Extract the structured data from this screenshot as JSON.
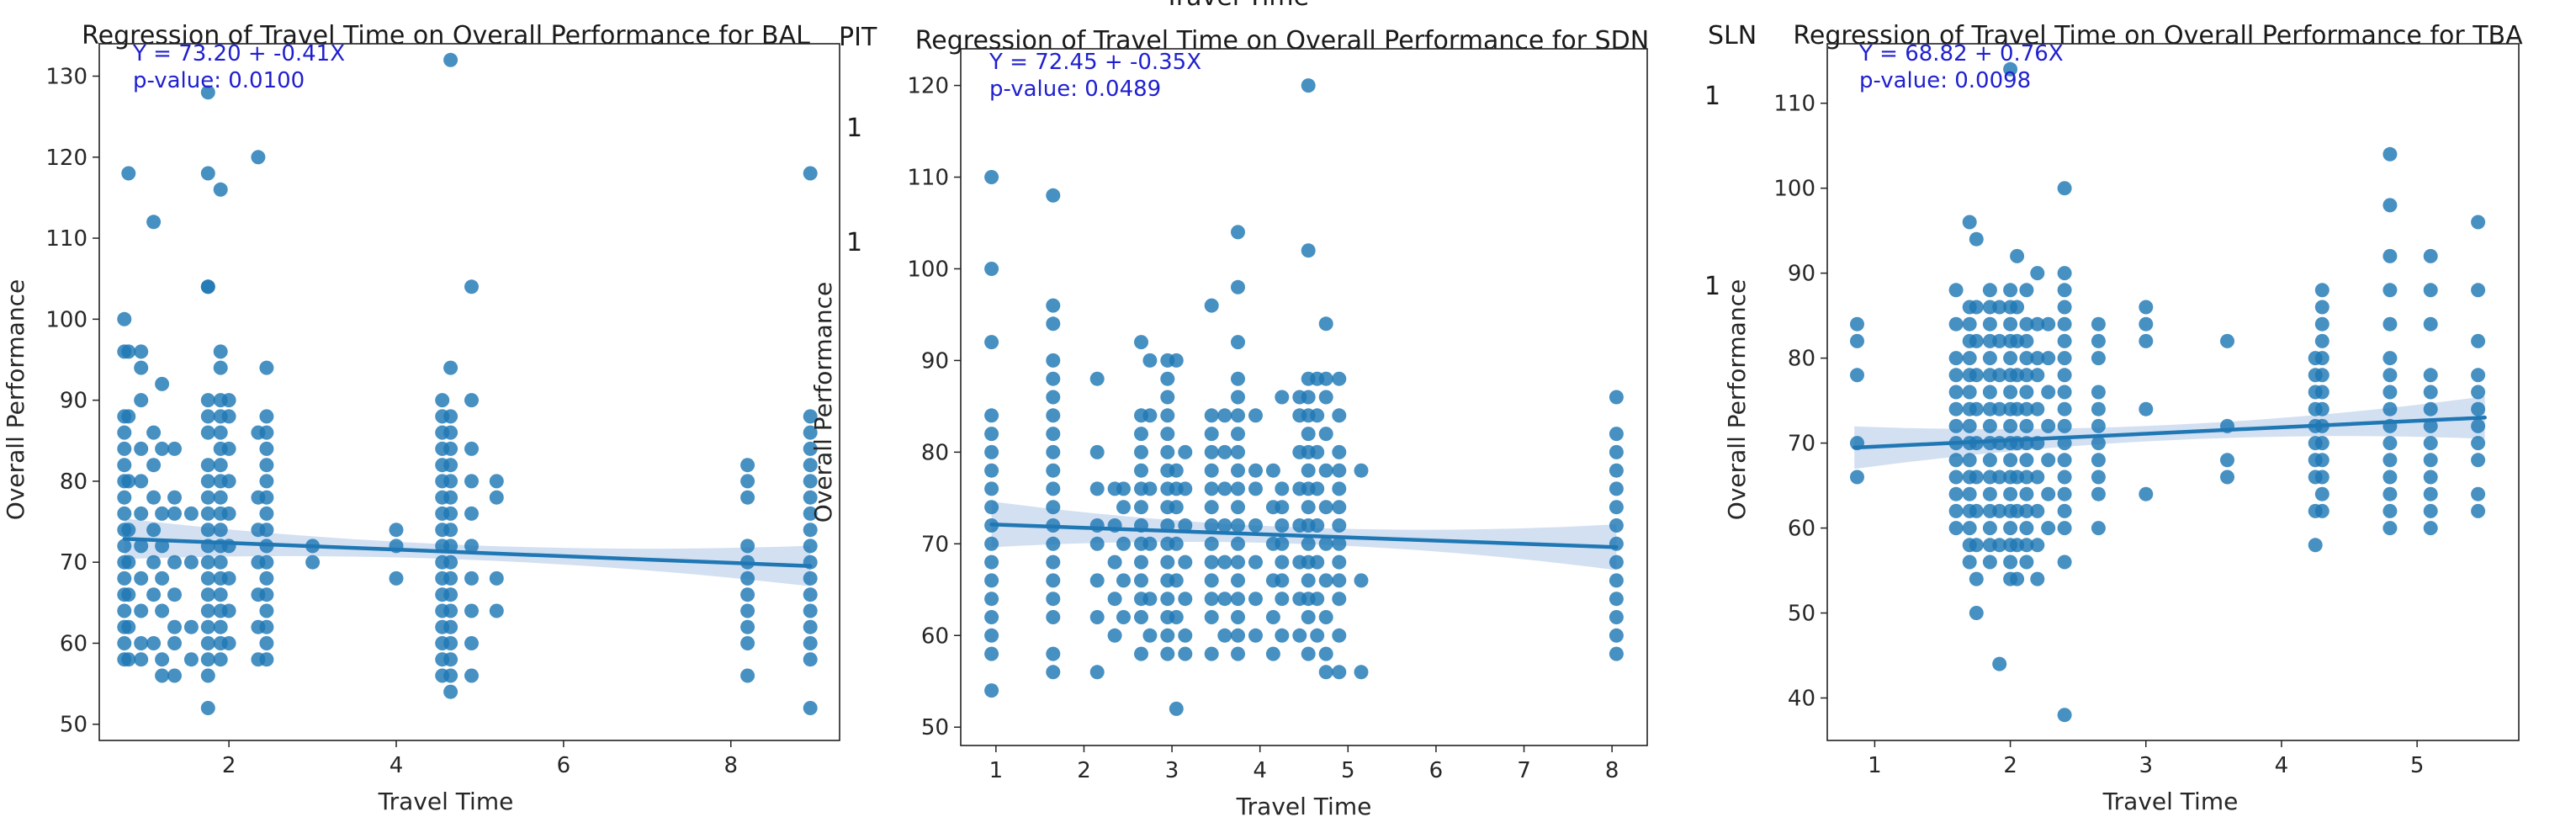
{
  "colors": {
    "points": "#1f77b4",
    "band": "#aec7e8",
    "stats_text": "#0000ff"
  },
  "clipped_background_texts": {
    "top_center": "Travel Time",
    "left_gap": [
      "PIT",
      "1",
      "1"
    ],
    "right_gap": [
      "SLN",
      "1",
      "1"
    ]
  },
  "chart_data": [
    {
      "type": "scatter",
      "title": "Regression of Travel Time on Overall Performance for BAL",
      "xlabel": "Travel Time",
      "ylabel": "Overall Performance",
      "xlim": [
        0.45,
        9.3
      ],
      "ylim": [
        48,
        134
      ],
      "xticks": [
        2,
        4,
        6,
        8
      ],
      "yticks": [
        50,
        60,
        70,
        80,
        90,
        100,
        110,
        120,
        130
      ],
      "fit": {
        "intercept": 73.2,
        "slope": -0.41,
        "x_range": [
          0.75,
          8.95
        ]
      },
      "equation_text": "Y = 73.20 + -0.41X",
      "pvalue_text": "p-value: 0.0100",
      "columns": [
        {
          "x": 0.75,
          "y": [
            58,
            60,
            62,
            64,
            66,
            68,
            70,
            72,
            74,
            76,
            78,
            80,
            82,
            84,
            86,
            88,
            96,
            100
          ]
        },
        {
          "x": 0.8,
          "y": [
            58,
            62,
            66,
            70,
            74,
            80,
            88,
            96,
            118
          ]
        },
        {
          "x": 0.95,
          "y": [
            58,
            60,
            64,
            68,
            72,
            76,
            80,
            84,
            90,
            94,
            96
          ]
        },
        {
          "x": 1.1,
          "y": [
            60,
            66,
            70,
            74,
            78,
            82,
            86,
            112
          ]
        },
        {
          "x": 1.2,
          "y": [
            56,
            58,
            64,
            68,
            72,
            76,
            84,
            92
          ]
        },
        {
          "x": 1.35,
          "y": [
            56,
            60,
            62,
            66,
            70,
            76,
            78,
            84
          ]
        },
        {
          "x": 1.55,
          "y": [
            58,
            62,
            70,
            76
          ]
        },
        {
          "x": 1.75,
          "y": [
            52,
            56,
            58,
            60,
            62,
            64,
            66,
            68,
            70,
            72,
            74,
            76,
            78,
            80,
            82,
            86,
            88,
            90,
            104,
            104,
            118,
            128
          ]
        },
        {
          "x": 1.9,
          "y": [
            58,
            60,
            62,
            64,
            66,
            68,
            70,
            72,
            74,
            76,
            78,
            80,
            82,
            84,
            86,
            88,
            90,
            94,
            96,
            116
          ]
        },
        {
          "x": 2.0,
          "y": [
            60,
            64,
            68,
            72,
            76,
            80,
            84,
            88,
            90
          ]
        },
        {
          "x": 2.35,
          "y": [
            58,
            62,
            66,
            70,
            74,
            78,
            86,
            120
          ]
        },
        {
          "x": 2.45,
          "y": [
            58,
            60,
            62,
            64,
            66,
            68,
            70,
            72,
            74,
            76,
            78,
            80,
            82,
            84,
            86,
            88,
            94
          ]
        },
        {
          "x": 3.0,
          "y": [
            70,
            72
          ]
        },
        {
          "x": 4.0,
          "y": [
            68,
            72,
            74
          ]
        },
        {
          "x": 4.55,
          "y": [
            56,
            58,
            60,
            62,
            64,
            66,
            68,
            70,
            72,
            74,
            76,
            78,
            80,
            82,
            84,
            86,
            88,
            90
          ]
        },
        {
          "x": 4.65,
          "y": [
            54,
            56,
            58,
            60,
            62,
            64,
            66,
            68,
            70,
            72,
            74,
            76,
            78,
            80,
            82,
            84,
            86,
            88,
            94,
            132
          ]
        },
        {
          "x": 4.9,
          "y": [
            56,
            60,
            64,
            68,
            72,
            76,
            80,
            84,
            90,
            104
          ]
        },
        {
          "x": 5.2,
          "y": [
            64,
            68,
            78,
            80
          ]
        },
        {
          "x": 8.2,
          "y": [
            56,
            60,
            62,
            64,
            66,
            68,
            70,
            72,
            78,
            80,
            82
          ]
        },
        {
          "x": 8.95,
          "y": [
            52,
            58,
            60,
            62,
            64,
            66,
            68,
            70,
            72,
            74,
            76,
            78,
            80,
            82,
            84,
            86,
            88,
            118
          ]
        }
      ]
    },
    {
      "type": "scatter",
      "title": "Regression of Travel Time on Overall Performance for SDN",
      "xlabel": "Travel Time",
      "ylabel": "Overall Performance",
      "xlim": [
        0.6,
        8.4
      ],
      "ylim": [
        48,
        124
      ],
      "xticks": [
        1,
        2,
        3,
        4,
        5,
        6,
        7,
        8
      ],
      "yticks": [
        50,
        60,
        70,
        80,
        90,
        100,
        110,
        120
      ],
      "fit": {
        "intercept": 72.45,
        "slope": -0.35,
        "x_range": [
          0.95,
          8.05
        ]
      },
      "equation_text": "Y = 72.45 + -0.35X",
      "pvalue_text": "p-value: 0.0489",
      "columns": [
        {
          "x": 0.95,
          "y": [
            54,
            58,
            60,
            62,
            64,
            66,
            68,
            70,
            72,
            74,
            76,
            78,
            80,
            82,
            84,
            92,
            100,
            110
          ]
        },
        {
          "x": 1.65,
          "y": [
            56,
            58,
            62,
            64,
            66,
            68,
            70,
            72,
            74,
            76,
            78,
            80,
            82,
            84,
            86,
            88,
            90,
            94,
            96,
            108
          ]
        },
        {
          "x": 2.15,
          "y": [
            56,
            62,
            66,
            70,
            72,
            76,
            80,
            88
          ]
        },
        {
          "x": 2.35,
          "y": [
            60,
            64,
            68,
            72,
            76
          ]
        },
        {
          "x": 2.45,
          "y": [
            62,
            66,
            70,
            74,
            76
          ]
        },
        {
          "x": 2.65,
          "y": [
            58,
            62,
            64,
            66,
            68,
            70,
            72,
            74,
            76,
            78,
            80,
            82,
            84,
            92
          ]
        },
        {
          "x": 2.75,
          "y": [
            60,
            64,
            70,
            76,
            84,
            90
          ]
        },
        {
          "x": 2.95,
          "y": [
            58,
            60,
            62,
            64,
            66,
            68,
            70,
            72,
            74,
            76,
            78,
            80,
            82,
            84,
            86,
            88,
            90
          ]
        },
        {
          "x": 3.05,
          "y": [
            52,
            62,
            66,
            70,
            74,
            76,
            78,
            90
          ]
        },
        {
          "x": 3.15,
          "y": [
            58,
            60,
            64,
            68,
            72,
            76,
            80
          ]
        },
        {
          "x": 3.45,
          "y": [
            58,
            62,
            64,
            66,
            68,
            70,
            72,
            74,
            76,
            78,
            80,
            82,
            84,
            96
          ]
        },
        {
          "x": 3.6,
          "y": [
            60,
            64,
            68,
            72,
            76,
            80,
            84
          ]
        },
        {
          "x": 3.75,
          "y": [
            58,
            60,
            62,
            64,
            66,
            68,
            70,
            72,
            74,
            76,
            78,
            80,
            82,
            84,
            86,
            88,
            92,
            98,
            104
          ]
        },
        {
          "x": 3.95,
          "y": [
            60,
            64,
            68,
            72,
            76,
            78,
            84
          ]
        },
        {
          "x": 4.15,
          "y": [
            58,
            62,
            66,
            70,
            74,
            78
          ]
        },
        {
          "x": 4.25,
          "y": [
            60,
            64,
            66,
            68,
            70,
            72,
            74,
            76,
            86
          ]
        },
        {
          "x": 4.45,
          "y": [
            60,
            64,
            68,
            72,
            76,
            80,
            84,
            86
          ]
        },
        {
          "x": 4.55,
          "y": [
            58,
            62,
            64,
            66,
            68,
            70,
            72,
            74,
            76,
            78,
            80,
            82,
            84,
            86,
            88,
            102,
            120
          ]
        },
        {
          "x": 4.65,
          "y": [
            60,
            64,
            68,
            72,
            76,
            80,
            84,
            88
          ]
        },
        {
          "x": 4.75,
          "y": [
            56,
            58,
            62,
            66,
            70,
            74,
            78,
            82,
            86,
            88,
            94
          ]
        },
        {
          "x": 4.9,
          "y": [
            56,
            60,
            64,
            66,
            68,
            70,
            72,
            74,
            76,
            78,
            80,
            84,
            88
          ]
        },
        {
          "x": 5.15,
          "y": [
            56,
            66,
            78
          ]
        },
        {
          "x": 8.05,
          "y": [
            58,
            60,
            62,
            64,
            66,
            68,
            70,
            72,
            74,
            76,
            78,
            80,
            82,
            86
          ]
        }
      ]
    },
    {
      "type": "scatter",
      "title": "Regression of Travel Time on Overall Performance for TBA",
      "xlabel": "Travel Time",
      "ylabel": "Overall Performance",
      "xlim": [
        0.65,
        5.75
      ],
      "ylim": [
        35,
        117
      ],
      "xticks": [
        1,
        2,
        3,
        4,
        5
      ],
      "yticks": [
        40,
        50,
        60,
        70,
        80,
        90,
        100,
        110
      ],
      "fit": {
        "intercept": 68.82,
        "slope": 0.76,
        "x_range": [
          0.85,
          5.5
        ]
      },
      "equation_text": "Y = 68.82 + 0.76X",
      "pvalue_text": "p-value: 0.0098",
      "columns": [
        {
          "x": 0.87,
          "y": [
            66,
            70,
            78,
            82,
            84
          ]
        },
        {
          "x": 1.6,
          "y": [
            60,
            62,
            64,
            66,
            68,
            70,
            72,
            74,
            76,
            78,
            80,
            84,
            88
          ]
        },
        {
          "x": 1.7,
          "y": [
            56,
            58,
            60,
            62,
            64,
            66,
            68,
            70,
            72,
            74,
            76,
            78,
            80,
            82,
            84,
            86,
            96
          ]
        },
        {
          "x": 1.75,
          "y": [
            50,
            54,
            58,
            62,
            66,
            70,
            74,
            78,
            82,
            86,
            94
          ]
        },
        {
          "x": 1.85,
          "y": [
            56,
            58,
            60,
            62,
            64,
            66,
            68,
            70,
            72,
            74,
            76,
            78,
            80,
            82,
            84,
            86,
            88
          ]
        },
        {
          "x": 1.92,
          "y": [
            44,
            58,
            62,
            66,
            70,
            74,
            78,
            82,
            86
          ]
        },
        {
          "x": 2.0,
          "y": [
            54,
            56,
            58,
            60,
            62,
            64,
            66,
            68,
            70,
            72,
            74,
            76,
            78,
            80,
            82,
            84,
            86,
            88,
            114
          ]
        },
        {
          "x": 2.05,
          "y": [
            54,
            58,
            62,
            66,
            70,
            74,
            78,
            82,
            86,
            92
          ]
        },
        {
          "x": 2.12,
          "y": [
            56,
            58,
            60,
            62,
            64,
            66,
            68,
            70,
            72,
            74,
            76,
            78,
            80,
            82,
            84,
            88
          ]
        },
        {
          "x": 2.2,
          "y": [
            54,
            58,
            62,
            66,
            70,
            74,
            78,
            80,
            84,
            90
          ]
        },
        {
          "x": 2.28,
          "y": [
            60,
            64,
            68,
            72,
            76,
            80,
            84
          ]
        },
        {
          "x": 2.4,
          "y": [
            38,
            56,
            60,
            62,
            64,
            66,
            68,
            70,
            72,
            74,
            76,
            78,
            80,
            82,
            84,
            86,
            88,
            90,
            100
          ]
        },
        {
          "x": 2.65,
          "y": [
            60,
            64,
            66,
            68,
            70,
            72,
            74,
            76,
            80,
            82,
            84
          ]
        },
        {
          "x": 3.0,
          "y": [
            64,
            74,
            82,
            84,
            86
          ]
        },
        {
          "x": 3.6,
          "y": [
            66,
            68,
            72,
            82
          ]
        },
        {
          "x": 4.25,
          "y": [
            58,
            62,
            66,
            68,
            70,
            72,
            74,
            76,
            78,
            80
          ]
        },
        {
          "x": 4.3,
          "y": [
            62,
            64,
            66,
            68,
            70,
            72,
            74,
            76,
            78,
            80,
            82,
            84,
            86,
            88
          ]
        },
        {
          "x": 4.8,
          "y": [
            60,
            62,
            64,
            66,
            68,
            70,
            72,
            74,
            76,
            78,
            80,
            84,
            88,
            92,
            98,
            104
          ]
        },
        {
          "x": 5.1,
          "y": [
            60,
            62,
            64,
            66,
            68,
            70,
            72,
            74,
            76,
            78,
            84,
            88,
            92
          ]
        },
        {
          "x": 5.45,
          "y": [
            62,
            64,
            68,
            70,
            72,
            74,
            76,
            78,
            82,
            88,
            96
          ]
        }
      ]
    }
  ]
}
